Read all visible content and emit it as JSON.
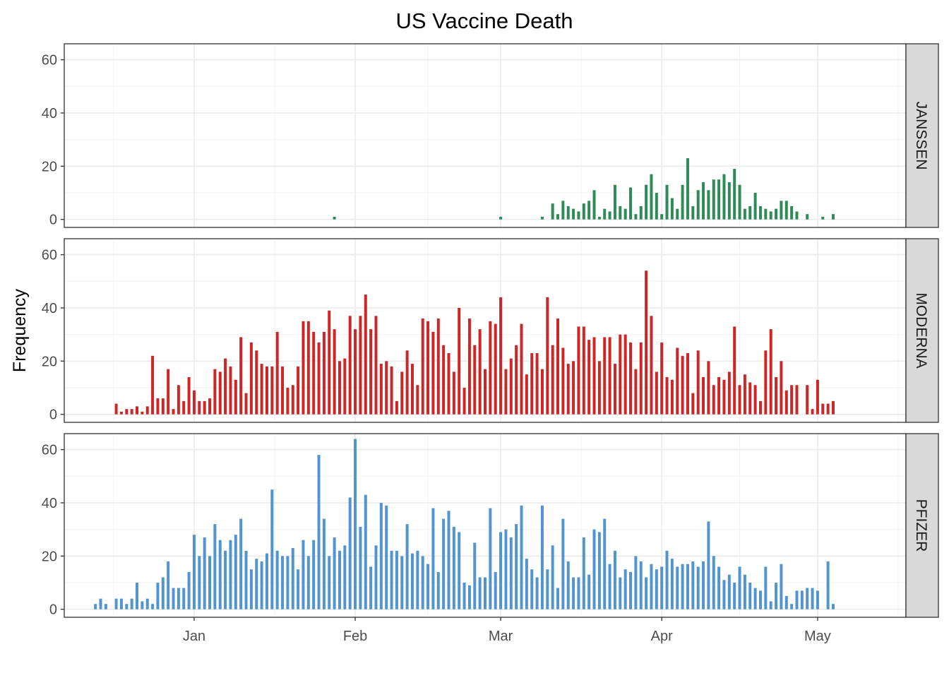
{
  "chart_data": {
    "type": "bar",
    "title": "US Vaccine Death",
    "xlabel": "",
    "ylabel": "Frequency",
    "x_start_date": "2020-12-12",
    "x_end_date": "2021-05-05",
    "xlim": [
      "2020-12-07",
      "2021-05-18"
    ],
    "ylim": [
      -3,
      66
    ],
    "y_ticks": [
      0,
      20,
      40,
      60
    ],
    "x_ticks": [
      {
        "date": "2021-01-01",
        "label": "Jan"
      },
      {
        "date": "2021-02-01",
        "label": "Feb"
      },
      {
        "date": "2021-03-01",
        "label": "Mar"
      },
      {
        "date": "2021-04-01",
        "label": "Apr"
      },
      {
        "date": "2021-05-01",
        "label": "May"
      }
    ],
    "grid": true,
    "facets": "rows",
    "series": [
      {
        "name": "JANSSEN",
        "color": "#2e8b57",
        "values": [
          0,
          0,
          0,
          0,
          0,
          0,
          0,
          0,
          0,
          0,
          0,
          0,
          0,
          0,
          0,
          0,
          0,
          0,
          0,
          0,
          0,
          0,
          0,
          0,
          0,
          0,
          0,
          0,
          0,
          0,
          0,
          0,
          0,
          0,
          0,
          0,
          0,
          0,
          0,
          0,
          0,
          0,
          0,
          0,
          0,
          0,
          0,
          1,
          0,
          0,
          0,
          0,
          0,
          0,
          0,
          0,
          0,
          0,
          0,
          0,
          0,
          0,
          0,
          0,
          0,
          0,
          0,
          0,
          0,
          0,
          0,
          0,
          0,
          0,
          0,
          0,
          0,
          0,
          0,
          1,
          0,
          0,
          0,
          0,
          0,
          0,
          0,
          1,
          0,
          6,
          2,
          7,
          5,
          4,
          3,
          6,
          7,
          11,
          1,
          4,
          3,
          13,
          5,
          4,
          12,
          2,
          5,
          13,
          17,
          10,
          2,
          13,
          8,
          4,
          13,
          23,
          5,
          11,
          14,
          11,
          15,
          15,
          17,
          14,
          19,
          13,
          4,
          5,
          10,
          5,
          4,
          3,
          4,
          7,
          7,
          5,
          3,
          0,
          2,
          0,
          0,
          1,
          0,
          2
        ]
      },
      {
        "name": "MODERNA",
        "color": "#cd2626",
        "values": [
          0,
          0,
          0,
          0,
          0,
          4,
          1,
          2,
          2,
          3,
          1,
          3,
          22,
          6,
          6,
          17,
          2,
          11,
          5,
          14,
          9,
          5,
          5,
          6,
          17,
          16,
          21,
          18,
          13,
          29,
          8,
          27,
          24,
          19,
          18,
          18,
          31,
          18,
          10,
          11,
          18,
          35,
          35,
          31,
          27,
          31,
          39,
          32,
          20,
          21,
          37,
          32,
          37,
          45,
          32,
          37,
          19,
          20,
          18,
          5,
          16,
          24,
          19,
          11,
          36,
          35,
          31,
          36,
          26,
          23,
          16,
          40,
          10,
          36,
          26,
          32,
          17,
          35,
          34,
          44,
          17,
          21,
          26,
          34,
          15,
          23,
          23,
          17,
          44,
          26,
          36,
          25,
          19,
          20,
          33,
          33,
          28,
          29,
          20,
          29,
          29,
          19,
          30,
          30,
          27,
          17,
          27,
          54,
          37,
          16,
          27,
          14,
          13,
          25,
          22,
          23,
          8,
          24,
          14,
          20,
          11,
          14,
          13,
          16,
          33,
          11,
          15,
          12,
          11,
          5,
          24,
          32,
          14,
          20,
          9,
          11,
          11,
          0,
          11,
          2,
          13,
          4,
          4,
          5
        ]
      },
      {
        "name": "PFIZER",
        "color": "#5294cf",
        "values": [
          0,
          2,
          4,
          2,
          0,
          4,
          4,
          2,
          4,
          10,
          3,
          4,
          2,
          10,
          12,
          18,
          8,
          8,
          8,
          14,
          28,
          20,
          27,
          20,
          32,
          26,
          22,
          26,
          28,
          34,
          22,
          15,
          19,
          18,
          21,
          45,
          22,
          20,
          20,
          23,
          15,
          26,
          20,
          26,
          58,
          34,
          20,
          27,
          22,
          24,
          42,
          64,
          31,
          43,
          16,
          24,
          40,
          39,
          22,
          22,
          20,
          32,
          21,
          22,
          20,
          17,
          38,
          14,
          34,
          37,
          31,
          29,
          10,
          9,
          25,
          12,
          12,
          38,
          14,
          29,
          30,
          27,
          32,
          39,
          19,
          15,
          12,
          39,
          15,
          24,
          8,
          34,
          18,
          12,
          12,
          27,
          13,
          30,
          29,
          34,
          17,
          22,
          12,
          15,
          14,
          20,
          18,
          12,
          17,
          15,
          16,
          22,
          19,
          16,
          17,
          17,
          18,
          16,
          18,
          33,
          20,
          16,
          11,
          13,
          10,
          16,
          13,
          10,
          8,
          7,
          16,
          3,
          10,
          17,
          5,
          2,
          7,
          7,
          8,
          8,
          7,
          0,
          18,
          2
        ]
      }
    ]
  }
}
